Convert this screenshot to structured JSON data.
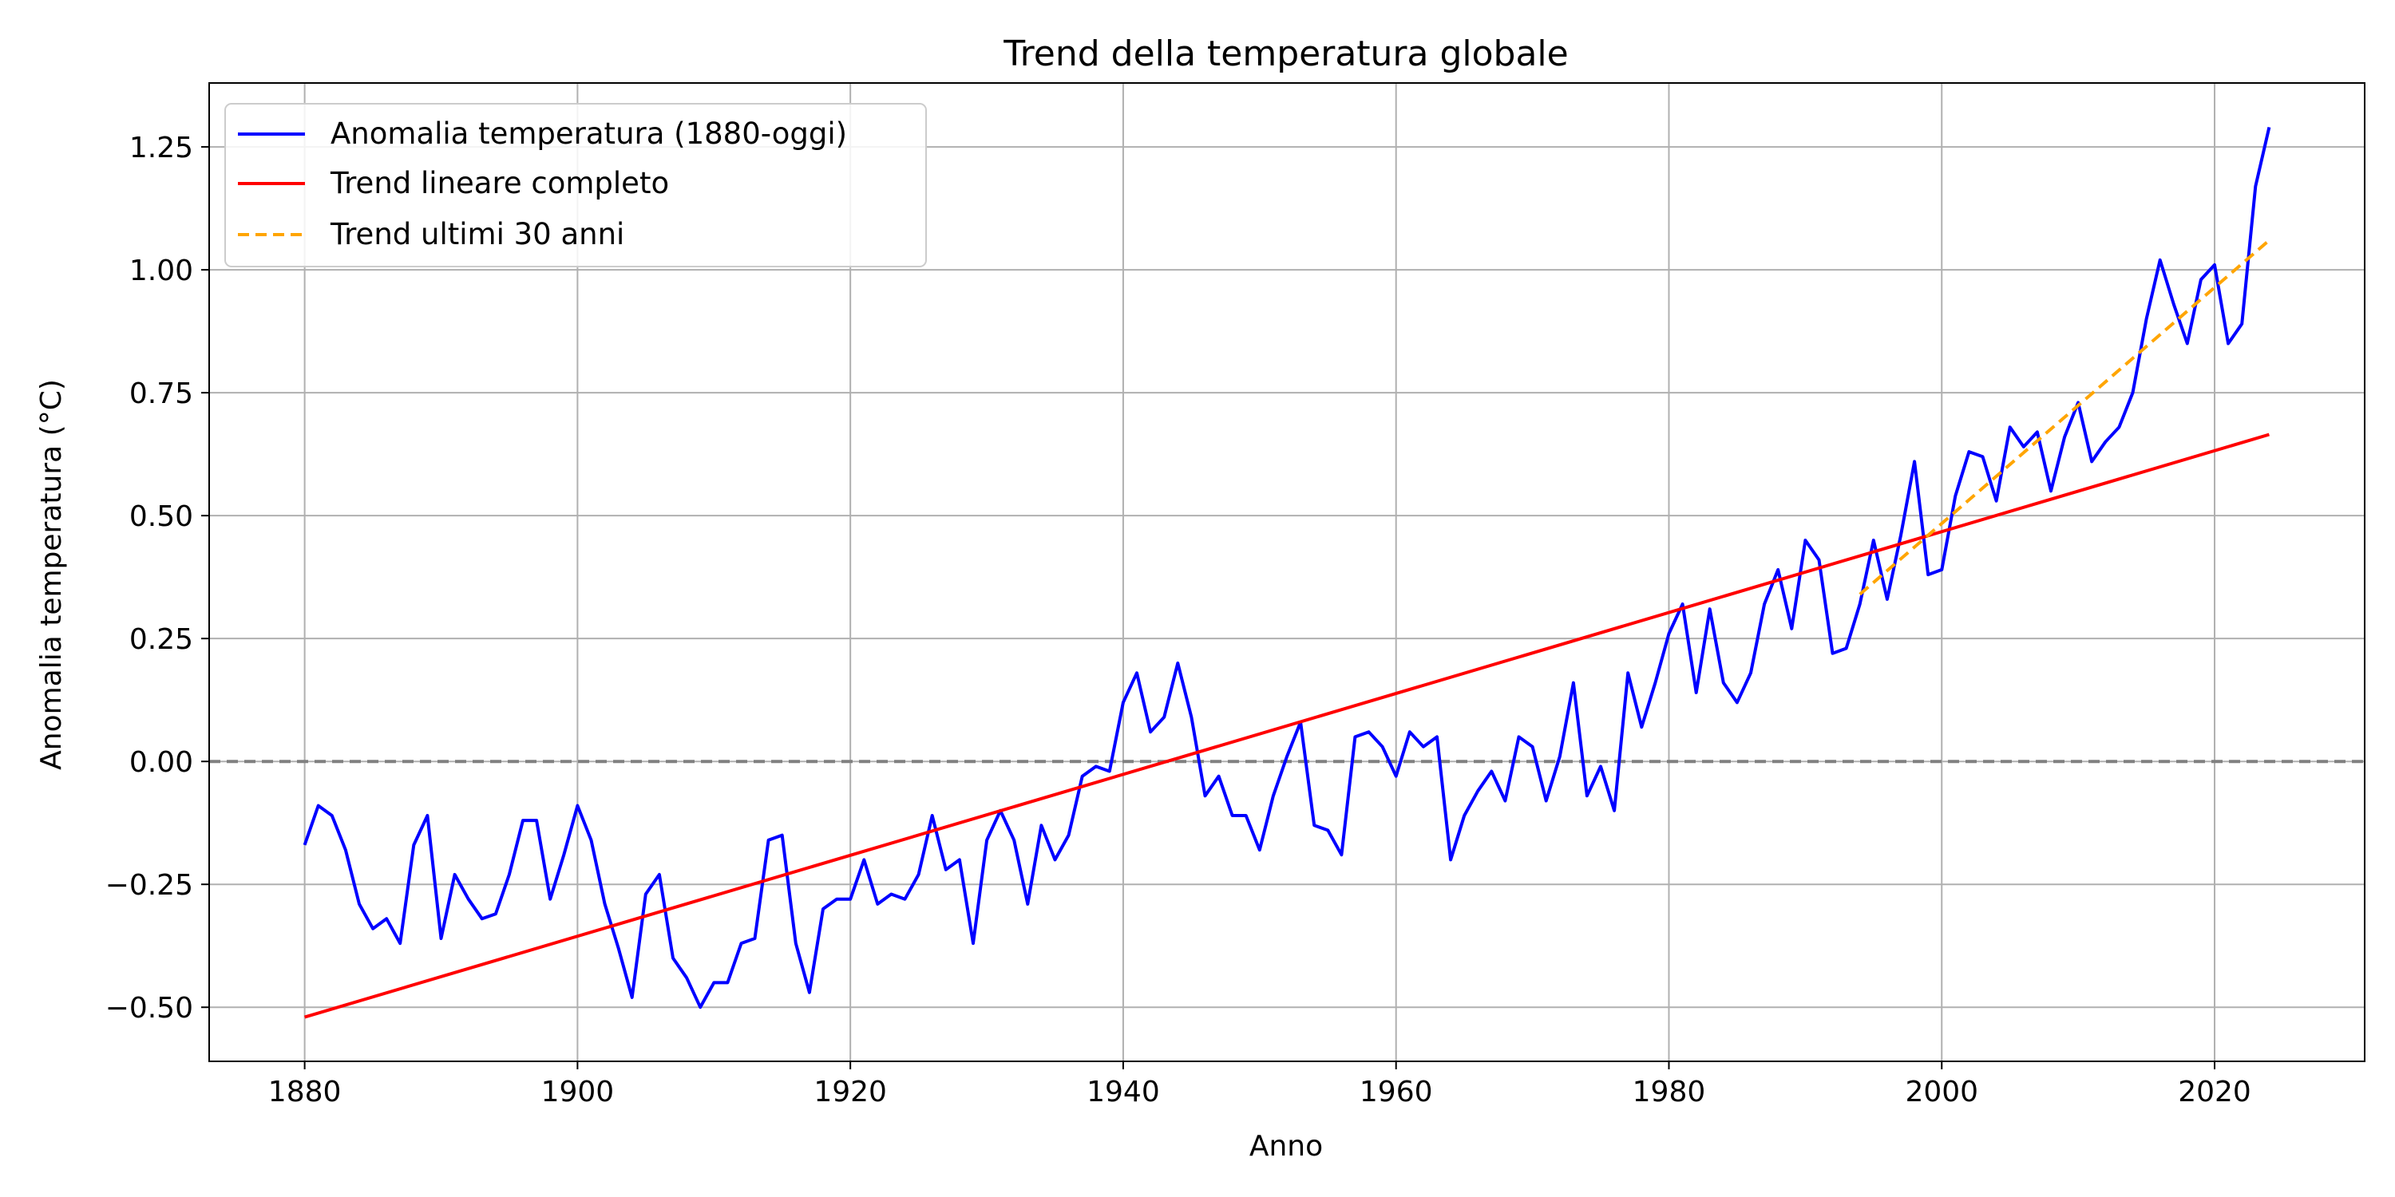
{
  "chart_data": {
    "type": "line",
    "title": "Trend della temperatura globale",
    "xlabel": "Anno",
    "ylabel": "Anomalia temperatura (°C)",
    "xlim": [
      1873,
      2031
    ],
    "ylim": [
      -0.61,
      1.38
    ],
    "xticks": [
      1880,
      1900,
      1920,
      1940,
      1960,
      1980,
      2000,
      2020
    ],
    "yticks": [
      -0.5,
      -0.25,
      0,
      0.25,
      0.5,
      0.75,
      1.0,
      1.25
    ],
    "ytick_labels": [
      "−0.50",
      "−0.25",
      "0.00",
      "0.25",
      "0.50",
      "0.75",
      "1.00",
      "1.25"
    ],
    "grid": true,
    "legend_position": "top-left",
    "zero_line": 0,
    "colors": {
      "anomaly": "#0000ff",
      "trend_full": "#ff0000",
      "trend_recent": "#ffa500",
      "zero": "#808080",
      "grid": "#b0b0b0"
    },
    "series": [
      {
        "name": "Anomalia temperatura (1880-oggi)",
        "style": "solid",
        "start_year": 1880,
        "values": [
          -0.17,
          -0.09,
          -0.11,
          -0.18,
          -0.29,
          -0.34,
          -0.32,
          -0.37,
          -0.17,
          -0.11,
          -0.36,
          -0.23,
          -0.28,
          -0.32,
          -0.31,
          -0.23,
          -0.12,
          -0.12,
          -0.28,
          -0.19,
          -0.09,
          -0.16,
          -0.29,
          -0.38,
          -0.48,
          -0.27,
          -0.23,
          -0.4,
          -0.44,
          -0.5,
          -0.45,
          -0.45,
          -0.37,
          -0.36,
          -0.16,
          -0.15,
          -0.37,
          -0.47,
          -0.3,
          -0.28,
          -0.28,
          -0.2,
          -0.29,
          -0.27,
          -0.28,
          -0.23,
          -0.11,
          -0.22,
          -0.2,
          -0.37,
          -0.16,
          -0.1,
          -0.16,
          -0.29,
          -0.13,
          -0.2,
          -0.15,
          -0.03,
          -0.01,
          -0.02,
          0.12,
          0.18,
          0.06,
          0.09,
          0.2,
          0.09,
          -0.07,
          -0.03,
          -0.11,
          -0.11,
          -0.18,
          -0.07,
          0.01,
          0.08,
          -0.13,
          -0.14,
          -0.19,
          0.05,
          0.06,
          0.03,
          -0.03,
          0.06,
          0.03,
          0.05,
          -0.2,
          -0.11,
          -0.06,
          -0.02,
          -0.08,
          0.05,
          0.03,
          -0.08,
          0.01,
          0.16,
          -0.07,
          -0.01,
          -0.1,
          0.18,
          0.07,
          0.16,
          0.26,
          0.32,
          0.14,
          0.31,
          0.16,
          0.12,
          0.18,
          0.32,
          0.39,
          0.27,
          0.45,
          0.41,
          0.22,
          0.23,
          0.32,
          0.45,
          0.33,
          0.46,
          0.61,
          0.38,
          0.39,
          0.54,
          0.63,
          0.62,
          0.53,
          0.68,
          0.64,
          0.67,
          0.55,
          0.66,
          0.73,
          0.61,
          0.65,
          0.68,
          0.75,
          0.9,
          1.02,
          0.93,
          0.85,
          0.98,
          1.01,
          0.85,
          0.89,
          1.17,
          1.29
        ]
      },
      {
        "name": "Trend lineare completo",
        "style": "solid",
        "x": [
          1880,
          2024
        ],
        "values": [
          -0.52,
          0.665
        ]
      },
      {
        "name": "Trend ultimi 30 anni",
        "style": "dashed",
        "x": [
          1994,
          2024
        ],
        "values": [
          0.34,
          1.06
        ]
      }
    ]
  }
}
